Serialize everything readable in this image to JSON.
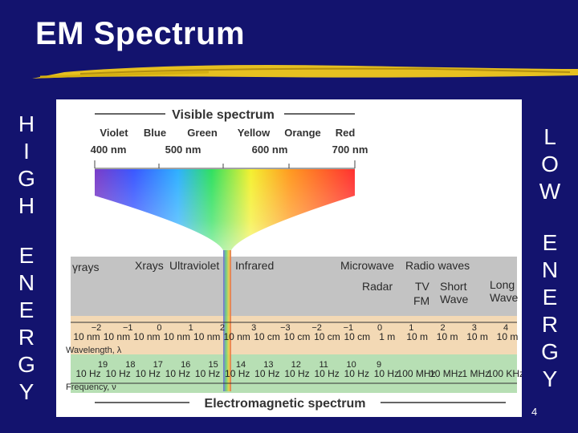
{
  "title": "EM Spectrum",
  "left_vertical": {
    "word1": [
      "H",
      "I",
      "G",
      "H"
    ],
    "word2": [
      "E",
      "N",
      "E",
      "R",
      "G",
      "Y"
    ]
  },
  "right_vertical": {
    "word1": [
      "L",
      "O",
      "W"
    ],
    "word2": [
      "E",
      "N",
      "E",
      "R",
      "G",
      "Y"
    ]
  },
  "page_number": "4",
  "diagram": {
    "visible_title": "Visible spectrum",
    "colors": [
      "Violet",
      "Blue",
      "Green",
      "Yellow",
      "Orange",
      "Red"
    ],
    "wavelengths_nm": [
      "400 nm",
      "500 nm",
      "600 nm",
      "700 nm"
    ],
    "regions_top": [
      "γrays",
      "Xrays",
      "Ultraviolet",
      "Infrared",
      "Microwave",
      "Radio waves"
    ],
    "regions_radio": [
      "Radar",
      "TV",
      "FM",
      "Short",
      "Wave",
      "Long",
      "Wave"
    ],
    "wavelength_exponents": [
      "−2",
      "−1",
      "0",
      "1",
      "2",
      "3",
      "−3",
      "−2",
      "−1",
      "0",
      "1",
      "2",
      "3",
      "4"
    ],
    "wavelength_units": [
      "10 nm",
      "10 nm",
      "10 nm",
      "10 nm",
      "10 nm",
      "10 nm",
      "10 cm",
      "10 cm",
      "10 cm",
      "10 cm",
      "1 m",
      "10 m",
      "10 m",
      "10 m",
      "10 m"
    ],
    "wavelength_label": "Wavelength, λ",
    "frequency_exponents": [
      "19",
      "18",
      "17",
      "16",
      "15",
      "14",
      "13",
      "12",
      "11",
      "10",
      "9"
    ],
    "frequency_units": [
      "10 Hz",
      "10 Hz",
      "10 Hz",
      "10 Hz",
      "10 Hz",
      "10 Hz",
      "10 Hz",
      "10 Hz",
      "10 Hz",
      "10 Hz",
      "10 Hz",
      "100 MHz",
      "10 MHz",
      "1 MHz",
      "100 KHz"
    ],
    "frequency_label": "Frequency, ν",
    "em_title": "Electromagnetic spectrum"
  }
}
